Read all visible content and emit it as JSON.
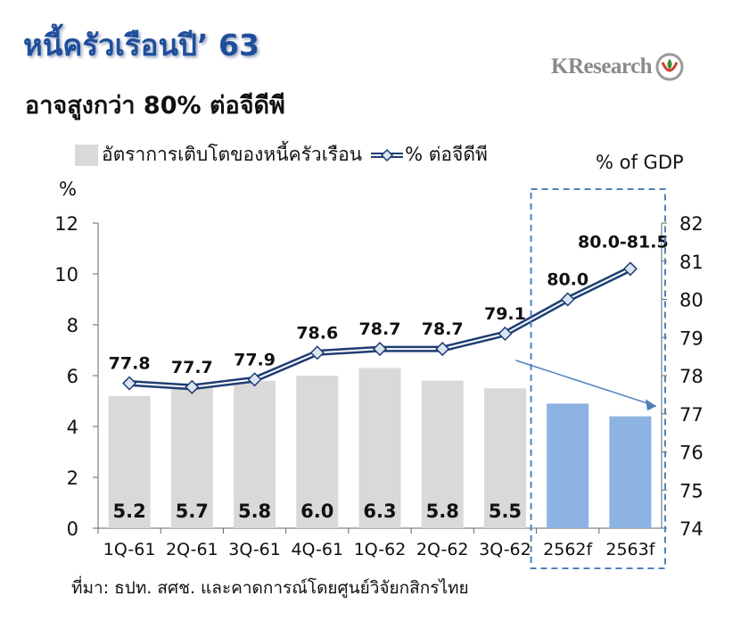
{
  "header": {
    "title": "หนี้ครัวเรือนปี’ 63",
    "subtitle": "อาจสูงกว่า 80% ต่อจีดีพี",
    "logo_text": "KResearch"
  },
  "footer": {
    "source": "ที่มา: ธปท. สศช. และคาดการณ์โดยศูนย์วิจัยกสิกรไทย"
  },
  "colors": {
    "title": "#1f4e9c",
    "bar_actual": "#d9d9d9",
    "bar_forecast": "#8db3e2",
    "line": "#1f3e73",
    "line_inner": "#ffffff",
    "marker": "#dbe5f1",
    "highlight_box": "#4f81bd",
    "arrow": "#4f81bd"
  },
  "chart_data": {
    "type": "bar",
    "categories": [
      "1Q-61",
      "2Q-61",
      "3Q-61",
      "4Q-61",
      "1Q-62",
      "2Q-62",
      "3Q-62",
      "2562f",
      "2563f"
    ],
    "series": [
      {
        "name": "อัตราการเติบโตของหนี้ครัวเรือน",
        "type": "bar",
        "axis": "left",
        "values": [
          5.2,
          5.7,
          5.8,
          6.0,
          6.3,
          5.8,
          5.5,
          4.9,
          4.4
        ],
        "data_labels": [
          "5.2",
          "5.7",
          "5.8",
          "6.0",
          "6.3",
          "5.8",
          "5.5",
          "",
          ""
        ],
        "forecast_from_index": 7
      },
      {
        "name": "% ต่อจีดีพี",
        "type": "line",
        "axis": "right",
        "values": [
          77.8,
          77.7,
          77.9,
          78.6,
          78.7,
          78.7,
          79.1,
          80.0,
          80.8
        ],
        "data_labels": [
          "77.8",
          "77.7",
          "77.9",
          "78.6",
          "78.7",
          "78.7",
          "79.1",
          "80.0",
          "80.0-81.5"
        ]
      }
    ],
    "left_axis": {
      "label": "%",
      "min": 0,
      "max": 12,
      "ticks": [
        0,
        2,
        4,
        6,
        8,
        10,
        12
      ]
    },
    "right_axis": {
      "label": "% of GDP",
      "min": 74,
      "max": 82,
      "ticks": [
        74,
        75,
        76,
        77,
        78,
        79,
        80,
        81,
        82
      ]
    },
    "grid": false,
    "legend_position": "top"
  }
}
